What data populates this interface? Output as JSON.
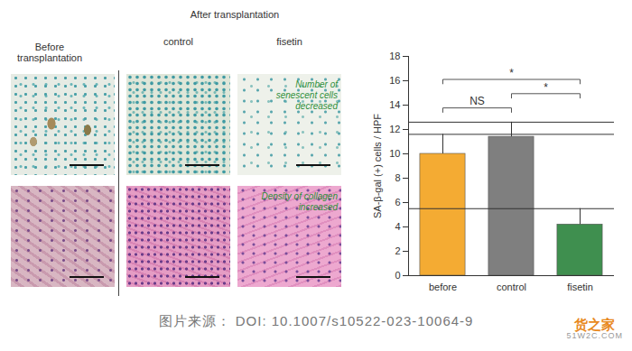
{
  "chart_data": {
    "type": "bar",
    "categories": [
      "before",
      "control",
      "fisetin"
    ],
    "values": [
      10.0,
      11.4,
      4.2
    ],
    "error": [
      1.6,
      1.2,
      1.3
    ],
    "colors": [
      "#f4ab33",
      "#7f7f7f",
      "#3f8f4f"
    ],
    "y_label": "SA-β-gal (+) cells / HPF",
    "ylim": [
      0,
      18
    ],
    "yticks": [
      0,
      2,
      4,
      6,
      8,
      10,
      12,
      14,
      16,
      18
    ],
    "grid": false,
    "significance": [
      {
        "from": "before",
        "to": "control",
        "label": "NS"
      },
      {
        "from": "control",
        "to": "fisetin",
        "label": "*"
      },
      {
        "from": "before",
        "to": "fisetin",
        "label": "*"
      }
    ]
  },
  "image_panels": {
    "before_label": "Before transplantation",
    "after_label": "After transplantation",
    "column_labels": [
      "control",
      "fisetin"
    ],
    "notes": [
      "Number of senescent cells decreased",
      "Density of collagen increased"
    ]
  },
  "caption": "图片来源： DOI: 10.1007/s10522-023-10064-9",
  "watermark": [
    "货之家",
    "51W2C.COM"
  ]
}
